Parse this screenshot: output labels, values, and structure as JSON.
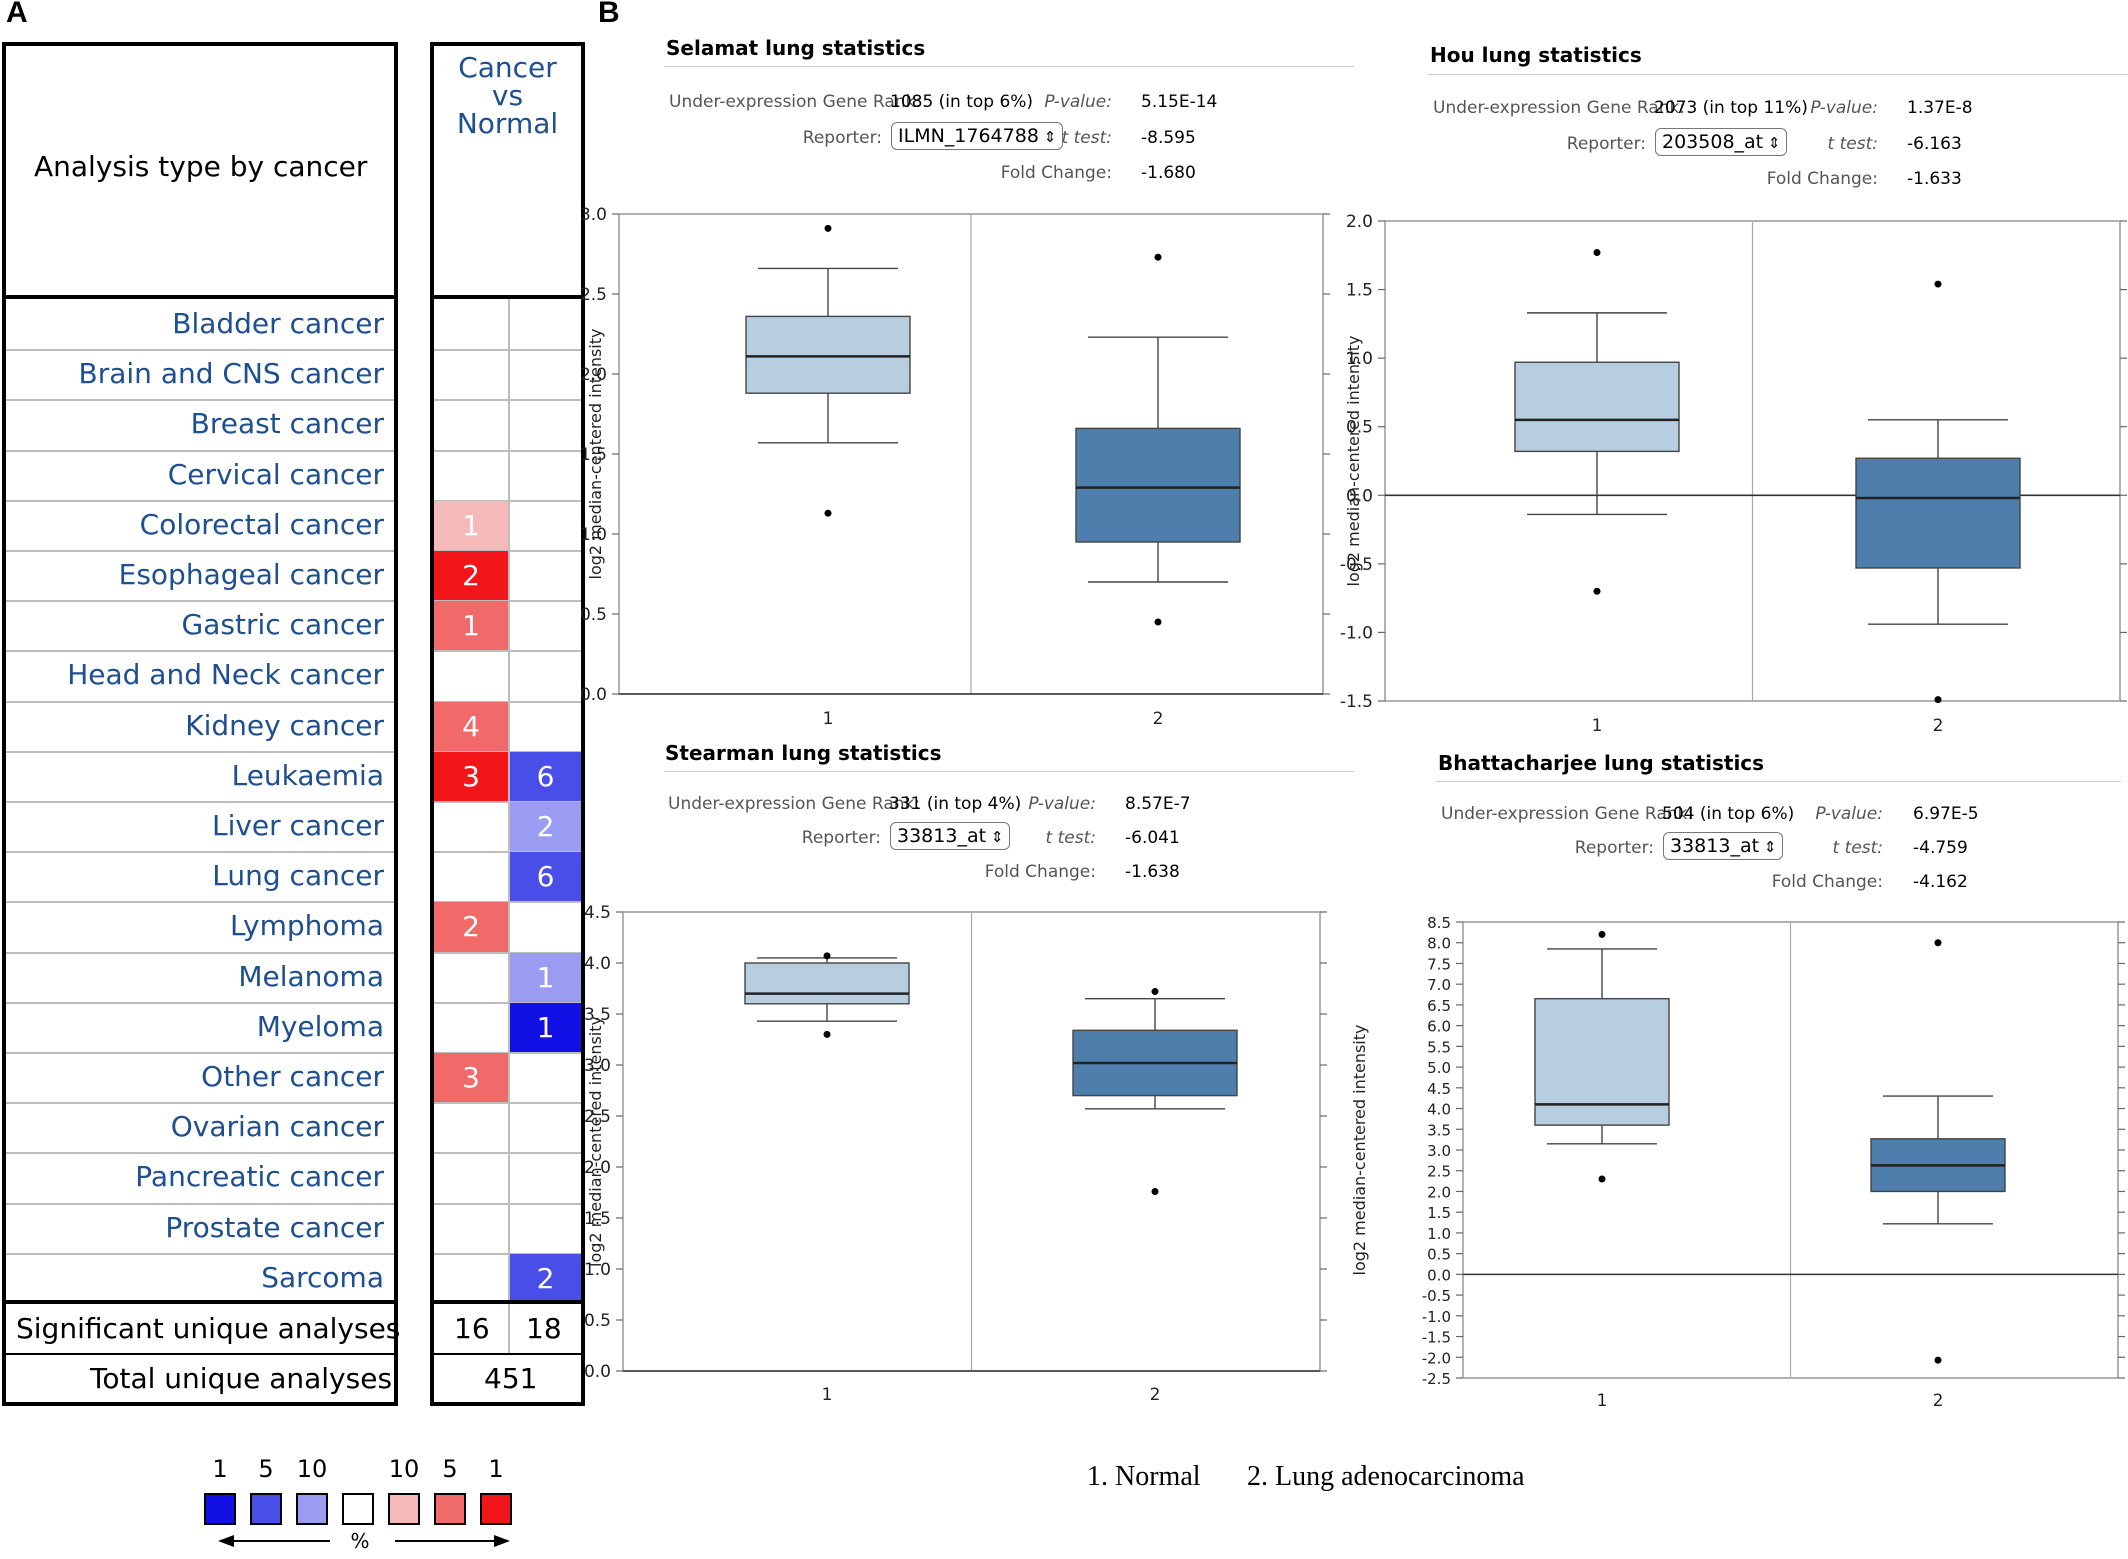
{
  "panel_a": {
    "letter": "A",
    "header_left": "Analysis type by cancer",
    "header_right": [
      "Cancer",
      "vs",
      "Normal"
    ],
    "rows": [
      {
        "name": "Bladder cancer",
        "over": "",
        "under": ""
      },
      {
        "name": "Brain and CNS cancer",
        "over": "",
        "under": ""
      },
      {
        "name": "Breast cancer",
        "over": "",
        "under": ""
      },
      {
        "name": "Cervical cancer",
        "over": "",
        "under": ""
      },
      {
        "name": "Colorectal cancer",
        "over": "1",
        "under": ""
      },
      {
        "name": "Esophageal cancer",
        "over": "2",
        "under": ""
      },
      {
        "name": "Gastric cancer",
        "over": "1",
        "under": ""
      },
      {
        "name": "Head and Neck cancer",
        "over": "",
        "under": ""
      },
      {
        "name": "Kidney cancer",
        "over": "4",
        "under": ""
      },
      {
        "name": "Leukaemia",
        "over": "3",
        "under": "6"
      },
      {
        "name": "Liver cancer",
        "over": "",
        "under": "2"
      },
      {
        "name": "Lung cancer",
        "over": "",
        "under": "6"
      },
      {
        "name": "Lymphoma",
        "over": "2",
        "under": ""
      },
      {
        "name": "Melanoma",
        "over": "",
        "under": "1"
      },
      {
        "name": "Myeloma",
        "over": "",
        "under": "1"
      },
      {
        "name": "Other cancer",
        "over": "3",
        "under": ""
      },
      {
        "name": "Ovarian cancer",
        "over": "",
        "under": ""
      },
      {
        "name": "Pancreatic cancer",
        "over": "",
        "under": ""
      },
      {
        "name": "Prostate cancer",
        "over": "",
        "under": ""
      },
      {
        "name": "Sarcoma",
        "over": "",
        "under": "2"
      }
    ],
    "cell_colors": {
      "Colorectal cancer|over": "#f6b9b9",
      "Esophageal cancer|over": "#f2161b",
      "Gastric cancer|over": "#f16a6a",
      "Kidney cancer|over": "#f16a6a",
      "Leukaemia|over": "#f2161b",
      "Leukaemia|under": "#4a4ee8",
      "Liver cancer|under": "#9a9cf2",
      "Lung cancer|under": "#4a4ee8",
      "Lymphoma|over": "#f16a6a",
      "Melanoma|under": "#9a9cf2",
      "Myeloma|under": "#1111e6",
      "Other cancer|over": "#f16a6a",
      "Sarcoma|under": "#4a4ee8"
    },
    "significant_label": "Significant unique analyses",
    "significant_over": "16",
    "significant_under": "18",
    "total_label": "Total unique analyses",
    "total_value": "451",
    "legend": {
      "labels": [
        "1",
        "5",
        "10",
        "",
        "10",
        "5",
        "1"
      ],
      "colors": [
        "#1111e6",
        "#4a4ee8",
        "#9a9cf2",
        "#ffffff",
        "#f6b9b9",
        "#f16a6a",
        "#f2161b"
      ],
      "unit": "%"
    }
  },
  "panel_b": {
    "letter": "B",
    "caption_1": "1. Normal",
    "caption_2": "2. Lung adenocarcinoma"
  },
  "chart_data": [
    {
      "type": "box",
      "title": "Selamat lung statistics",
      "rank_label": "Under-expression Gene Rank:",
      "rank_value": "1085 (in top 6%)",
      "reporter_label": "Reporter:",
      "reporter": "ILMN_1764788",
      "pvalue_label": "P-value:",
      "pvalue": "5.15E-14",
      "ttest_label": "t test:",
      "ttest": "-8.595",
      "fold_label": "Fold Change:",
      "fold": "-1.680",
      "ylabel": "log2 median-centered intensity",
      "ylim": [
        0.0,
        3.0
      ],
      "yticks": [
        0.0,
        0.5,
        1.0,
        1.5,
        2.0,
        2.5,
        3.0
      ],
      "tick_labels": [
        "0.0",
        "0.5",
        "1.0",
        "1.5",
        "2.0",
        "2.5",
        "3.0"
      ],
      "zero_line": 0.0,
      "categories": [
        "1",
        "2"
      ],
      "boxes": [
        {
          "q1": 1.88,
          "median": 2.11,
          "q3": 2.36,
          "whisker_low": 1.57,
          "whisker_high": 2.66,
          "outliers": [
            2.91,
            1.13
          ],
          "color": "#b7cde0"
        },
        {
          "q1": 0.95,
          "median": 1.29,
          "q3": 1.66,
          "whisker_low": 0.7,
          "whisker_high": 2.23,
          "outliers": [
            2.73,
            0.45
          ],
          "color": "#4e7fac"
        }
      ]
    },
    {
      "type": "box",
      "title": "Hou lung statistics",
      "rank_label": "Under-expression Gene Rank:",
      "rank_value": "2073 (in top 11%)",
      "reporter_label": "Reporter:",
      "reporter": "203508_at",
      "pvalue_label": "P-value:",
      "pvalue": "1.37E-8",
      "ttest_label": "t test:",
      "ttest": "-6.163",
      "fold_label": "Fold Change:",
      "fold": "-1.633",
      "ylabel": "log2 median-centered intensity",
      "ylim": [
        -1.5,
        2.0
      ],
      "yticks": [
        -1.5,
        -1.0,
        -0.5,
        0.0,
        0.5,
        1.0,
        1.5,
        2.0
      ],
      "tick_labels": [
        "-1.5",
        "-1.0",
        "-0.5",
        "0.0",
        "0.5",
        "1.0",
        "1.5",
        "2.0"
      ],
      "zero_line": 0.0,
      "categories": [
        "1",
        "2"
      ],
      "boxes": [
        {
          "q1": 0.32,
          "median": 0.55,
          "q3": 0.97,
          "whisker_low": -0.14,
          "whisker_high": 1.33,
          "outliers": [
            1.77,
            -0.7
          ],
          "color": "#b7cde0"
        },
        {
          "q1": -0.53,
          "median": -0.02,
          "q3": 0.27,
          "whisker_low": -0.94,
          "whisker_high": 0.55,
          "outliers": [
            1.54,
            -1.49
          ],
          "color": "#4e7fac"
        }
      ]
    },
    {
      "type": "box",
      "title": "Stearman lung statistics",
      "rank_label": "Under-expression Gene Rank:",
      "rank_value": "331 (in top 4%)",
      "reporter_label": "Reporter:",
      "reporter": "33813_at",
      "pvalue_label": "P-value:",
      "pvalue": "8.57E-7",
      "ttest_label": "t test:",
      "ttest": "-6.041",
      "fold_label": "Fold Change:",
      "fold": "-1.638",
      "ylabel": "log2 median-centered intensity",
      "ylim": [
        0.0,
        4.5
      ],
      "yticks": [
        0.0,
        0.5,
        1.0,
        1.5,
        2.0,
        2.5,
        3.0,
        3.5,
        4.0,
        4.5
      ],
      "tick_labels": [
        "0.0",
        "0.5",
        "1.0",
        "1.5",
        "2.0",
        "2.5",
        "3.0",
        "3.5",
        "4.0",
        "4.5"
      ],
      "zero_line": 0.0,
      "categories": [
        "1",
        "2"
      ],
      "boxes": [
        {
          "q1": 3.6,
          "median": 3.7,
          "q3": 4.0,
          "whisker_low": 3.43,
          "whisker_high": 4.05,
          "outliers": [
            4.07,
            3.3
          ],
          "color": "#b7cde0"
        },
        {
          "q1": 2.7,
          "median": 3.02,
          "q3": 3.34,
          "whisker_low": 2.57,
          "whisker_high": 3.65,
          "outliers": [
            3.72,
            1.76
          ],
          "color": "#4e7fac"
        }
      ]
    },
    {
      "type": "box",
      "title": "Bhattacharjee lung statistics",
      "rank_label": "Under-expression Gene Rank:",
      "rank_value": "504 (in top 6%)",
      "reporter_label": "Reporter:",
      "reporter": "33813_at",
      "pvalue_label": "P-value:",
      "pvalue": "6.97E-5",
      "ttest_label": "t test:",
      "ttest": "-4.759",
      "fold_label": "Fold Change:",
      "fold": "-4.162",
      "ylabel": "log2 median-centered intensity",
      "ylim": [
        -2.5,
        8.5
      ],
      "yticks": [
        -2.5,
        -2.0,
        -1.5,
        -1.0,
        -0.5,
        0.0,
        0.5,
        1.0,
        1.5,
        2.0,
        2.5,
        3.0,
        3.5,
        4.0,
        4.5,
        5.0,
        5.5,
        6.0,
        6.5,
        7.0,
        7.5,
        8.0,
        8.5
      ],
      "tick_labels": [
        "-2.5",
        "-2.0",
        "-1.5",
        "-1.0",
        "-0.5",
        "0.0",
        "0.5",
        "1.0",
        "1.5",
        "2.0",
        "2.5",
        "3.0",
        "3.5",
        "4.0",
        "4.5",
        "5.0",
        "5.5",
        "6.0",
        "6.5",
        "7.0",
        "7.5",
        "8.0",
        "8.5"
      ],
      "zero_line": 0.0,
      "categories": [
        "1",
        "2"
      ],
      "boxes": [
        {
          "q1": 3.6,
          "median": 4.1,
          "q3": 6.65,
          "whisker_low": 3.15,
          "whisker_high": 7.85,
          "outliers": [
            8.2,
            2.3
          ],
          "color": "#b7cde0"
        },
        {
          "q1": 2.0,
          "median": 2.63,
          "q3": 3.27,
          "whisker_low": 1.22,
          "whisker_high": 4.3,
          "outliers": [
            8.0,
            -2.07
          ],
          "color": "#4e7fac"
        }
      ]
    }
  ]
}
